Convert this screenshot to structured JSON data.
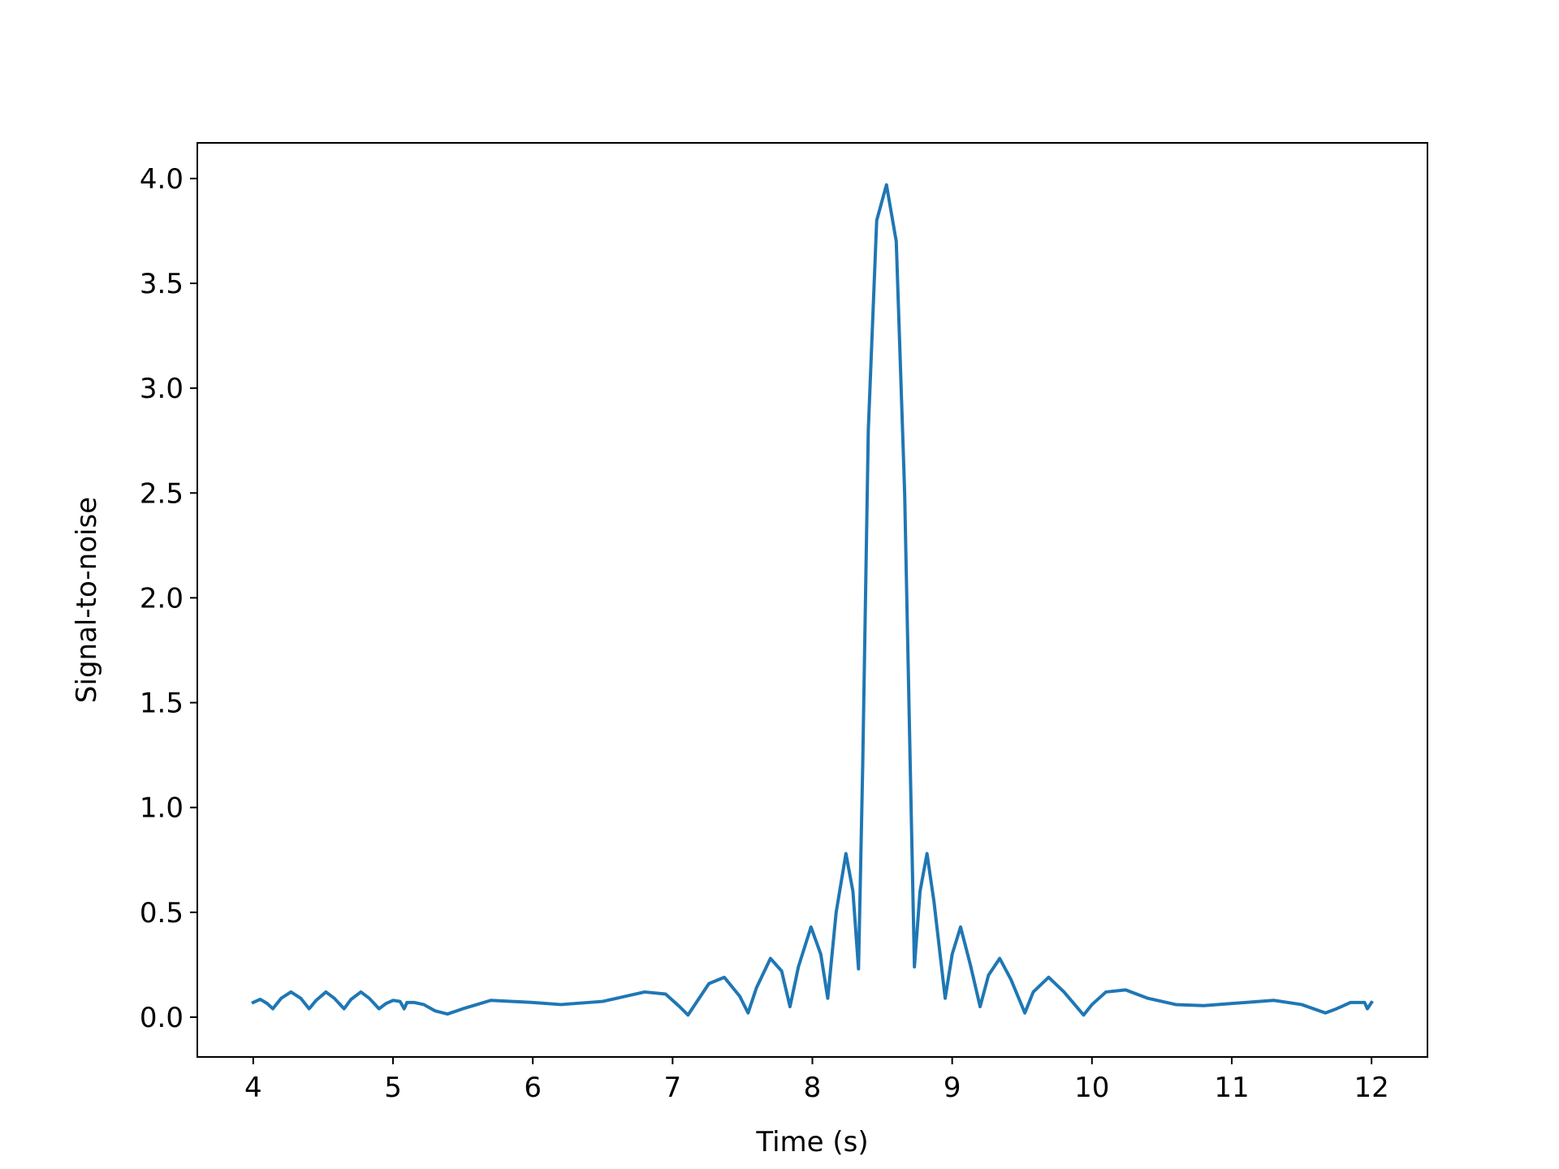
{
  "chart_data": {
    "type": "line",
    "title": "",
    "xlabel": "Time (s)",
    "ylabel": "Signal-to-noise",
    "xlim": [
      3.6,
      12.4
    ],
    "ylim": [
      -0.19,
      4.17
    ],
    "xticks": [
      4,
      5,
      6,
      7,
      8,
      9,
      10,
      11,
      12
    ],
    "xtick_labels": [
      "4",
      "5",
      "6",
      "7",
      "8",
      "9",
      "10",
      "11",
      "12"
    ],
    "yticks": [
      0.0,
      0.5,
      1.0,
      1.5,
      2.0,
      2.5,
      3.0,
      3.5,
      4.0
    ],
    "ytick_labels": [
      "0.0",
      "0.5",
      "1.0",
      "1.5",
      "2.0",
      "2.5",
      "3.0",
      "3.5",
      "4.0"
    ],
    "grid": false,
    "line_color": "#1f77b4",
    "series": [
      {
        "x": [
          4.0,
          4.05,
          4.1,
          4.14,
          4.2,
          4.27,
          4.34,
          4.4,
          4.45,
          4.52,
          4.58,
          4.65,
          4.7,
          4.77,
          4.83,
          4.9,
          4.95,
          5.0,
          5.05,
          5.08,
          5.1,
          5.15,
          5.22,
          5.3,
          5.39,
          5.5,
          5.7,
          6.0,
          6.2,
          6.5,
          6.8,
          6.95,
          7.05,
          7.11,
          7.18,
          7.26,
          7.37,
          7.48,
          7.54,
          7.6,
          7.7,
          7.78,
          7.84,
          7.9,
          7.99,
          8.06,
          8.11,
          8.17,
          8.24,
          8.29,
          8.33,
          8.36,
          8.4,
          8.46,
          8.53,
          8.6,
          8.66,
          8.7,
          8.73,
          8.77,
          8.82,
          8.87,
          8.95,
          9.0,
          9.06,
          9.13,
          9.2,
          9.26,
          9.34,
          9.42,
          9.52,
          9.58,
          9.69,
          9.8,
          9.94,
          10.0,
          10.1,
          10.24,
          10.4,
          10.6,
          10.8,
          11.0,
          11.3,
          11.5,
          11.67,
          11.75,
          11.85,
          11.95,
          11.97,
          12.0
        ],
        "y": [
          0.07,
          0.085,
          0.065,
          0.04,
          0.09,
          0.12,
          0.09,
          0.04,
          0.08,
          0.12,
          0.09,
          0.04,
          0.085,
          0.12,
          0.09,
          0.04,
          0.065,
          0.08,
          0.075,
          0.04,
          0.07,
          0.07,
          0.06,
          0.03,
          0.015,
          0.04,
          0.08,
          0.07,
          0.06,
          0.075,
          0.12,
          0.11,
          0.05,
          0.01,
          0.08,
          0.16,
          0.19,
          0.1,
          0.02,
          0.14,
          0.28,
          0.22,
          0.05,
          0.24,
          0.43,
          0.3,
          0.09,
          0.5,
          0.78,
          0.6,
          0.23,
          1.2,
          2.8,
          3.8,
          3.97,
          3.7,
          2.5,
          1.2,
          0.24,
          0.6,
          0.78,
          0.55,
          0.09,
          0.3,
          0.43,
          0.25,
          0.05,
          0.2,
          0.28,
          0.18,
          0.02,
          0.12,
          0.19,
          0.12,
          0.01,
          0.06,
          0.12,
          0.13,
          0.09,
          0.06,
          0.055,
          0.065,
          0.08,
          0.06,
          0.02,
          0.04,
          0.07,
          0.07,
          0.04,
          0.07
        ]
      }
    ]
  }
}
